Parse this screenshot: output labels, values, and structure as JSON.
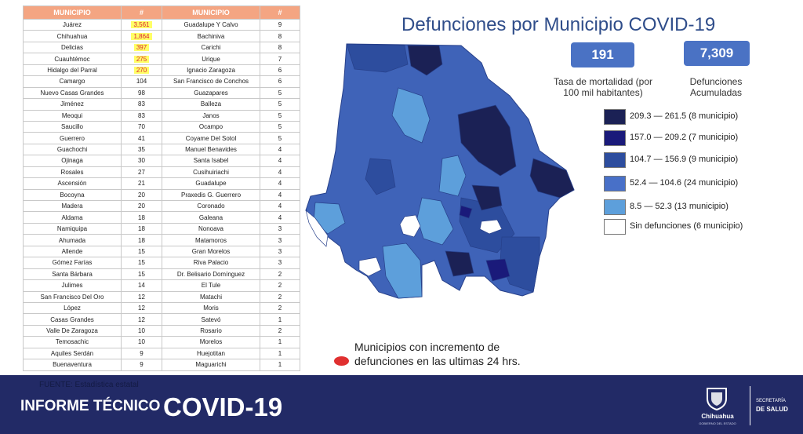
{
  "title": "Defunciones por Municipio COVID-19",
  "stats": {
    "mortality_value": "191",
    "mortality_label": "Tasa de mortalidad (por 100 mil habitantes)",
    "accumulated_value": "7,309",
    "accumulated_label": "Defunciones Acumuladas"
  },
  "table": {
    "headers": [
      "MUNICIPIO",
      "#",
      "MUNICIPIO",
      "#"
    ],
    "rows": [
      [
        "Juárez",
        "3,561",
        "Guadalupe Y Calvo",
        "9"
      ],
      [
        "Chihuahua",
        "1,864",
        "Bachiniva",
        "8"
      ],
      [
        "Delicias",
        "397",
        "Carichi",
        "8"
      ],
      [
        "Cuauhtémoc",
        "275",
        "Urique",
        "7"
      ],
      [
        "Hidalgo del Parral",
        "270",
        "Ignacio Zaragoza",
        "6"
      ],
      [
        "Camargo",
        "104",
        "San Francisco de Conchos",
        "6"
      ],
      [
        "Nuevo Casas Grandes",
        "98",
        "Guazapares",
        "5"
      ],
      [
        "Jiménez",
        "83",
        "Balleza",
        "5"
      ],
      [
        "Meoqui",
        "83",
        "Janos",
        "5"
      ],
      [
        "Saucillo",
        "70",
        "Ocampo",
        "5"
      ],
      [
        "Guerrero",
        "41",
        "Coyame Del Sotol",
        "5"
      ],
      [
        "Guachochi",
        "35",
        "Manuel Benavides",
        "4"
      ],
      [
        "Ojinaga",
        "30",
        "Santa Isabel",
        "4"
      ],
      [
        "Rosales",
        "27",
        "Cusihuiriachi",
        "4"
      ],
      [
        "Ascensión",
        "21",
        "Guadalupe",
        "4"
      ],
      [
        "Bocoyna",
        "20",
        "Praxedis G. Guerrero",
        "4"
      ],
      [
        "Madera",
        "20",
        "Coronado",
        "4"
      ],
      [
        "Aldama",
        "18",
        "Galeana",
        "4"
      ],
      [
        "Namiquipa",
        "18",
        "Nonoava",
        "3"
      ],
      [
        "Ahumada",
        "18",
        "Matamoros",
        "3"
      ],
      [
        "Allende",
        "15",
        "Gran Morelos",
        "3"
      ],
      [
        "Gómez Farías",
        "15",
        "Riva Palacio",
        "3"
      ],
      [
        "Santa Bárbara",
        "15",
        "Dr. Belisario Domínguez",
        "2"
      ],
      [
        "Julimes",
        "14",
        "El Tule",
        "2"
      ],
      [
        "San Francisco Del Oro",
        "12",
        "Matachi",
        "2"
      ],
      [
        "López",
        "12",
        "Moris",
        "2"
      ],
      [
        "Casas Grandes",
        "12",
        "Satevó",
        "1"
      ],
      [
        "Valle De Zaragoza",
        "10",
        "Rosario",
        "2"
      ],
      [
        "Temosachic",
        "10",
        "Morelos",
        "1"
      ],
      [
        "Aquiles Serdán",
        "9",
        "Huejotitan",
        "1"
      ],
      [
        "Buenaventura",
        "9",
        "Maguarichi",
        "1"
      ]
    ],
    "highlight_color": "#ffff66"
  },
  "legend": [
    {
      "label": "209.3 — 261.5 (8 municipio)",
      "color": "#1b2155"
    },
    {
      "label": "157.0 — 209.2 (7 municipio)",
      "color": "#1a1a7a"
    },
    {
      "label": "104.7 — 156.9 (9 municipio)",
      "color": "#2d4d9e"
    },
    {
      "label": "52.4 — 104.6 (24 municipio)",
      "color": "#4870c8"
    },
    {
      "label": "8.5 — 52.3 (13 municipio)",
      "color": "#5d9fdb"
    },
    {
      "label": "Sin defunciones (6 municipio)",
      "color": "#ffffff"
    }
  ],
  "map_note": "Municipios con incremento de defunciones en las ultimas 24 hrs.",
  "map_note_color": "#e03030",
  "footer": {
    "source": "FUENTE: Estadística estatal",
    "informe": "INFORME TÉCNICO",
    "covid": "COVID-19",
    "gov_name": "Chihuahua",
    "gov_sub": "GOBIERNO DEL ESTADO",
    "secretaria": "SECRETARÍA",
    "salud": "DE SALUD"
  }
}
